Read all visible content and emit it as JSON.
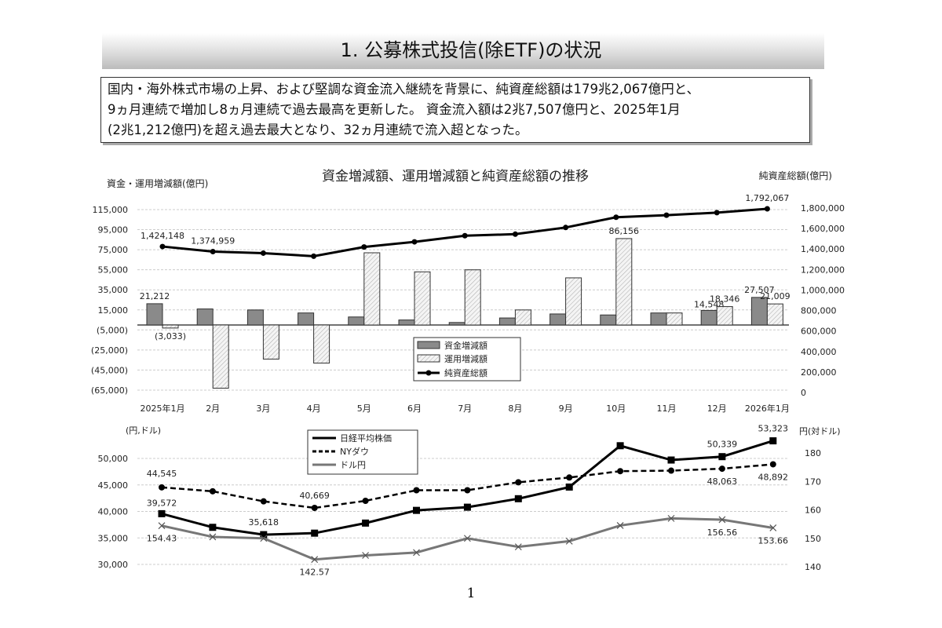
{
  "title": "1. 公募株式投信(除ETF)の状況",
  "summary": "国内・海外株式市場の上昇、および堅調な資金流入継続を背景に、純資産総額は179兆2,067億円と、\n9ヵ月連続で増加し8ヵ月連続で過去最高を更新した。 資金流入額は2兆7,507億円と、2025年1月\n(2兆1,212億円)を超え過去最大となり、32ヵ月連続で流入超となった。",
  "page_number": "1",
  "chart_data": [
    {
      "type": "bar+line",
      "title": "資金増減額、運用増減額と純資産総額の推移",
      "ylabel_left": "資金・運用増減額(億円)",
      "ylabel_right": "純資産総額(億円)",
      "categories": [
        "2025年1月",
        "2月",
        "3月",
        "4月",
        "5月",
        "6月",
        "7月",
        "8月",
        "9月",
        "10月",
        "11月",
        "12月",
        "2026年1月"
      ],
      "ylim_left": [
        -65000,
        115000
      ],
      "yticks_left": [
        "115,000",
        "95,000",
        "75,000",
        "55,000",
        "35,000",
        "15,000",
        "(5,000)",
        "(25,000)",
        "(45,000)",
        "(65,000)"
      ],
      "ylim_right": [
        0,
        1800000
      ],
      "yticks_right": [
        "1,800,000",
        "1,600,000",
        "1,400,000",
        "1,200,000",
        "1,000,000",
        "800,000",
        "600,000",
        "400,000",
        "200,000",
        "0"
      ],
      "legend_position": "center",
      "grid": true,
      "series": [
        {
          "name": "資金増減額",
          "kind": "bar",
          "color": "#888888",
          "values": [
            21212,
            16000,
            15000,
            12000,
            8000,
            5000,
            2500,
            7000,
            11000,
            10000,
            12000,
            14548,
            27507
          ],
          "labels": {
            "0": "21,212",
            "11": "14,548",
            "12": "27,507"
          }
        },
        {
          "name": "運用増減額",
          "kind": "bar-hatched",
          "color": "#eeeeee",
          "values": [
            -3033,
            -63000,
            -34000,
            -38000,
            72000,
            53000,
            55000,
            15000,
            47000,
            86156,
            12000,
            18346,
            21009
          ],
          "labels": {
            "0": "(3,033)",
            "9": "86,156",
            "11": "18,346",
            "12": "21,009"
          }
        },
        {
          "name": "純資産総額",
          "kind": "line",
          "axis": "right",
          "color": "#000000",
          "values": [
            1424148,
            1374959,
            1360000,
            1330000,
            1420000,
            1470000,
            1530000,
            1545000,
            1610000,
            1710000,
            1730000,
            1755000,
            1792067
          ],
          "labels": {
            "0": "1,424,148",
            "1": "1,374,959",
            "12": "1,792,067"
          }
        }
      ]
    },
    {
      "type": "line",
      "ylabel_left": "(円,ドル)",
      "ylabel_right": "円(対ドル)",
      "ylim_left": [
        30000,
        50000
      ],
      "yticks_left": [
        "50,000",
        "45,000",
        "40,000",
        "35,000",
        "30,000"
      ],
      "ylim_right": [
        140,
        180
      ],
      "yticks_right": [
        "180",
        "170",
        "160",
        "150",
        "140"
      ],
      "legend_position": "top-left",
      "series": [
        {
          "name": "日経平均株価",
          "style": "solid-square",
          "color": "#000000",
          "values": [
            39572,
            37000,
            35618,
            35900,
            37800,
            40200,
            40800,
            42400,
            44600,
            52400,
            49700,
            50339,
            53323
          ],
          "labels": {
            "0": "39,572",
            "2": "35,618",
            "11": "50,339",
            "12": "53,323"
          }
        },
        {
          "name": "NYダウ",
          "style": "dashed-circle",
          "color": "#000000",
          "values": [
            44545,
            43800,
            41900,
            40669,
            42000,
            44000,
            44000,
            45500,
            46400,
            47600,
            47700,
            48063,
            48892
          ],
          "labels": {
            "0": "44,545",
            "3": "40,669",
            "11": "48,063",
            "12": "48,892"
          }
        },
        {
          "name": "ドル円",
          "style": "gray-x",
          "axis": "right",
          "color": "#777777",
          "values": [
            154.43,
            150.5,
            150,
            142.57,
            144,
            145,
            150,
            147,
            149,
            154.5,
            157,
            156.56,
            153.66
          ],
          "labels": {
            "0": "154.43",
            "3": "142.57",
            "11": "156.56",
            "12": "153.66"
          }
        }
      ]
    }
  ]
}
